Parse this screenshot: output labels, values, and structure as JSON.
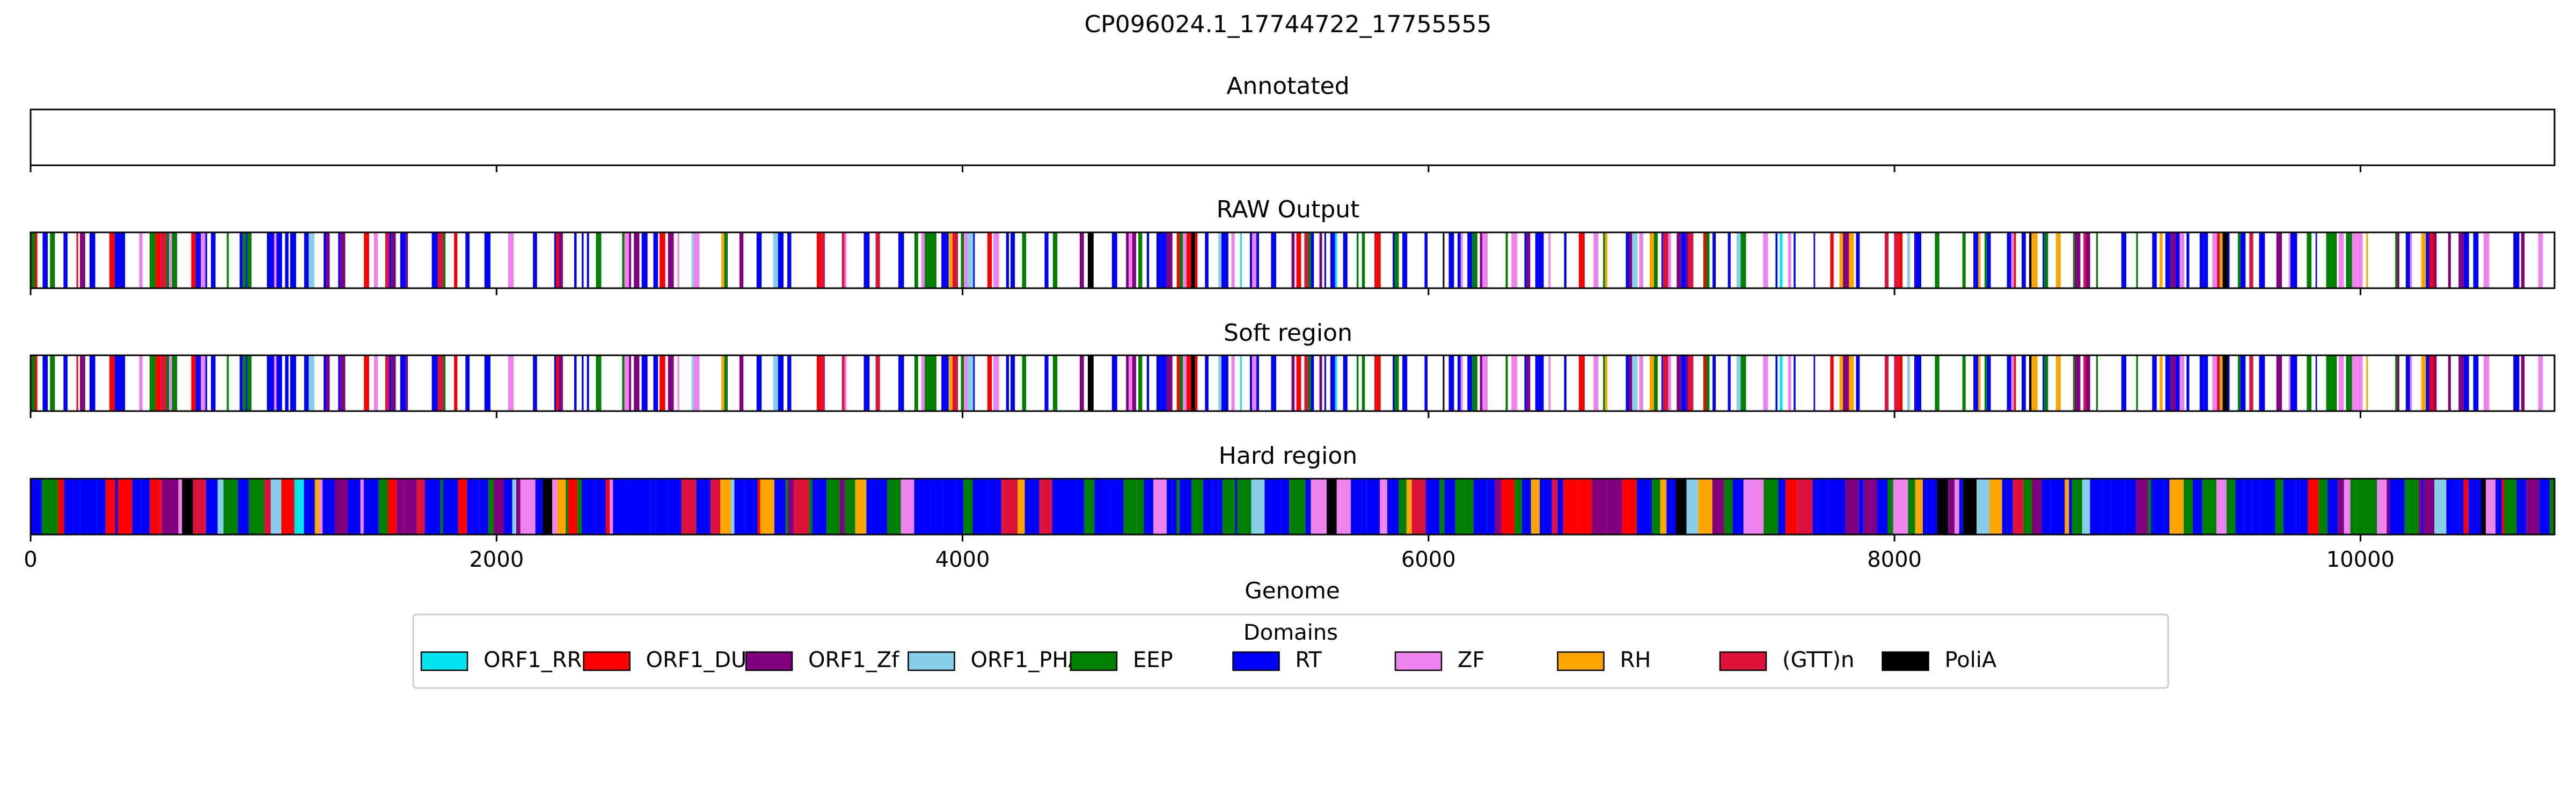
{
  "chart_data": {
    "type": "track",
    "title": "CP096024.1_17744722_17755555",
    "xlabel": "Genome",
    "xlim": [
      0,
      10833
    ],
    "xticks": [
      0,
      2000,
      4000,
      6000,
      8000,
      10000
    ],
    "tick_labels": [
      "0",
      "2000",
      "4000",
      "6000",
      "8000",
      "10000"
    ],
    "panels": [
      {
        "id": "annotated",
        "title": "Annotated",
        "xtick_labels_shown": false,
        "generator": null
      },
      {
        "id": "raw",
        "title": "RAW Output",
        "xtick_labels_shown": false,
        "generator": {
          "seed": 17,
          "fill_fraction": 0.42,
          "min_width": 6,
          "max_width": 26
        }
      },
      {
        "id": "soft",
        "title": "Soft region",
        "xtick_labels_shown": false,
        "generator": {
          "seed": 17,
          "fill_fraction": 0.42,
          "min_width": 6,
          "max_width": 26
        }
      },
      {
        "id": "hard",
        "title": "Hard region",
        "xtick_labels_shown": true,
        "generator": {
          "seed": 91,
          "fill_fraction": 1.0,
          "min_width": 8,
          "max_width": 70
        }
      }
    ],
    "legend": {
      "title": "Domains",
      "placement": "bottom-center",
      "entries": [
        {
          "label": "ORF1_RRM",
          "color": "#00e5ee"
        },
        {
          "label": "ORF1_DUF",
          "color": "#ff0000"
        },
        {
          "label": "ORF1_Zf",
          "color": "#800080"
        },
        {
          "label": "ORF1_PHA",
          "color": "#87ceeb"
        },
        {
          "label": "EEP",
          "color": "#008000"
        },
        {
          "label": "RT",
          "color": "#0000ff"
        },
        {
          "label": "ZF",
          "color": "#ee82ee"
        },
        {
          "label": "RH",
          "color": "#ffa500"
        },
        {
          "label": "(GTT)n",
          "color": "#dc143c"
        },
        {
          "label": "PoliA",
          "color": "#000000"
        }
      ]
    },
    "domain_weights": {
      "RT": 0.42,
      "EEP": 0.16,
      "ZF": 0.1,
      "ORF1_Zf": 0.08,
      "ORF1_DUF": 0.08,
      "RH": 0.05,
      "(GTT)n": 0.05,
      "ORF1_PHA": 0.03,
      "ORF1_RRM": 0.015,
      "PoliA": 0.015
    }
  }
}
